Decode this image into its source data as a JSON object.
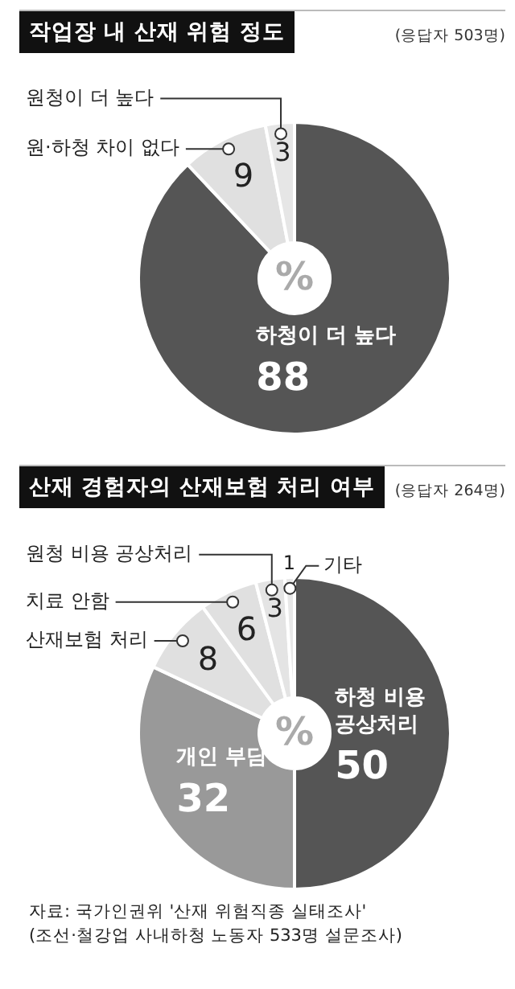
{
  "chart_data": [
    {
      "type": "donut",
      "title": "작업장 내 산재 위험 정도",
      "subtitle": "(응답자 503명)",
      "categories": [
        "하청이 더 높다",
        "원·하청 차이 없다",
        "원청이 더 높다"
      ],
      "values": [
        88,
        9,
        3
      ],
      "colors": [
        "#555555",
        "#e0e0e0",
        "#e6e6e6"
      ],
      "data_labels": true,
      "legend": false,
      "annotations": [
        "%"
      ]
    },
    {
      "type": "donut",
      "title": "산재 경험자의 산재보험 처리 여부",
      "subtitle": "(응답자 264명)",
      "categories": [
        "하청 비용 공상처리",
        "개인 부담",
        "산재보험 처리",
        "치료 안함",
        "원청 비용 공상처리",
        "기타"
      ],
      "values": [
        50,
        32,
        8,
        6,
        3,
        1
      ],
      "colors": [
        "#555555",
        "#999999",
        "#e0e0e0",
        "#e0e0e0",
        "#e4e4e4",
        "#e8e8e8"
      ],
      "data_labels": true,
      "legend": false,
      "annotations": [
        "%",
        "자료: 국가인권위 '산재 위험직종 실태조사'",
        "(조선·철강업 사내하청 노동자 533명 설문조사)"
      ]
    }
  ]
}
